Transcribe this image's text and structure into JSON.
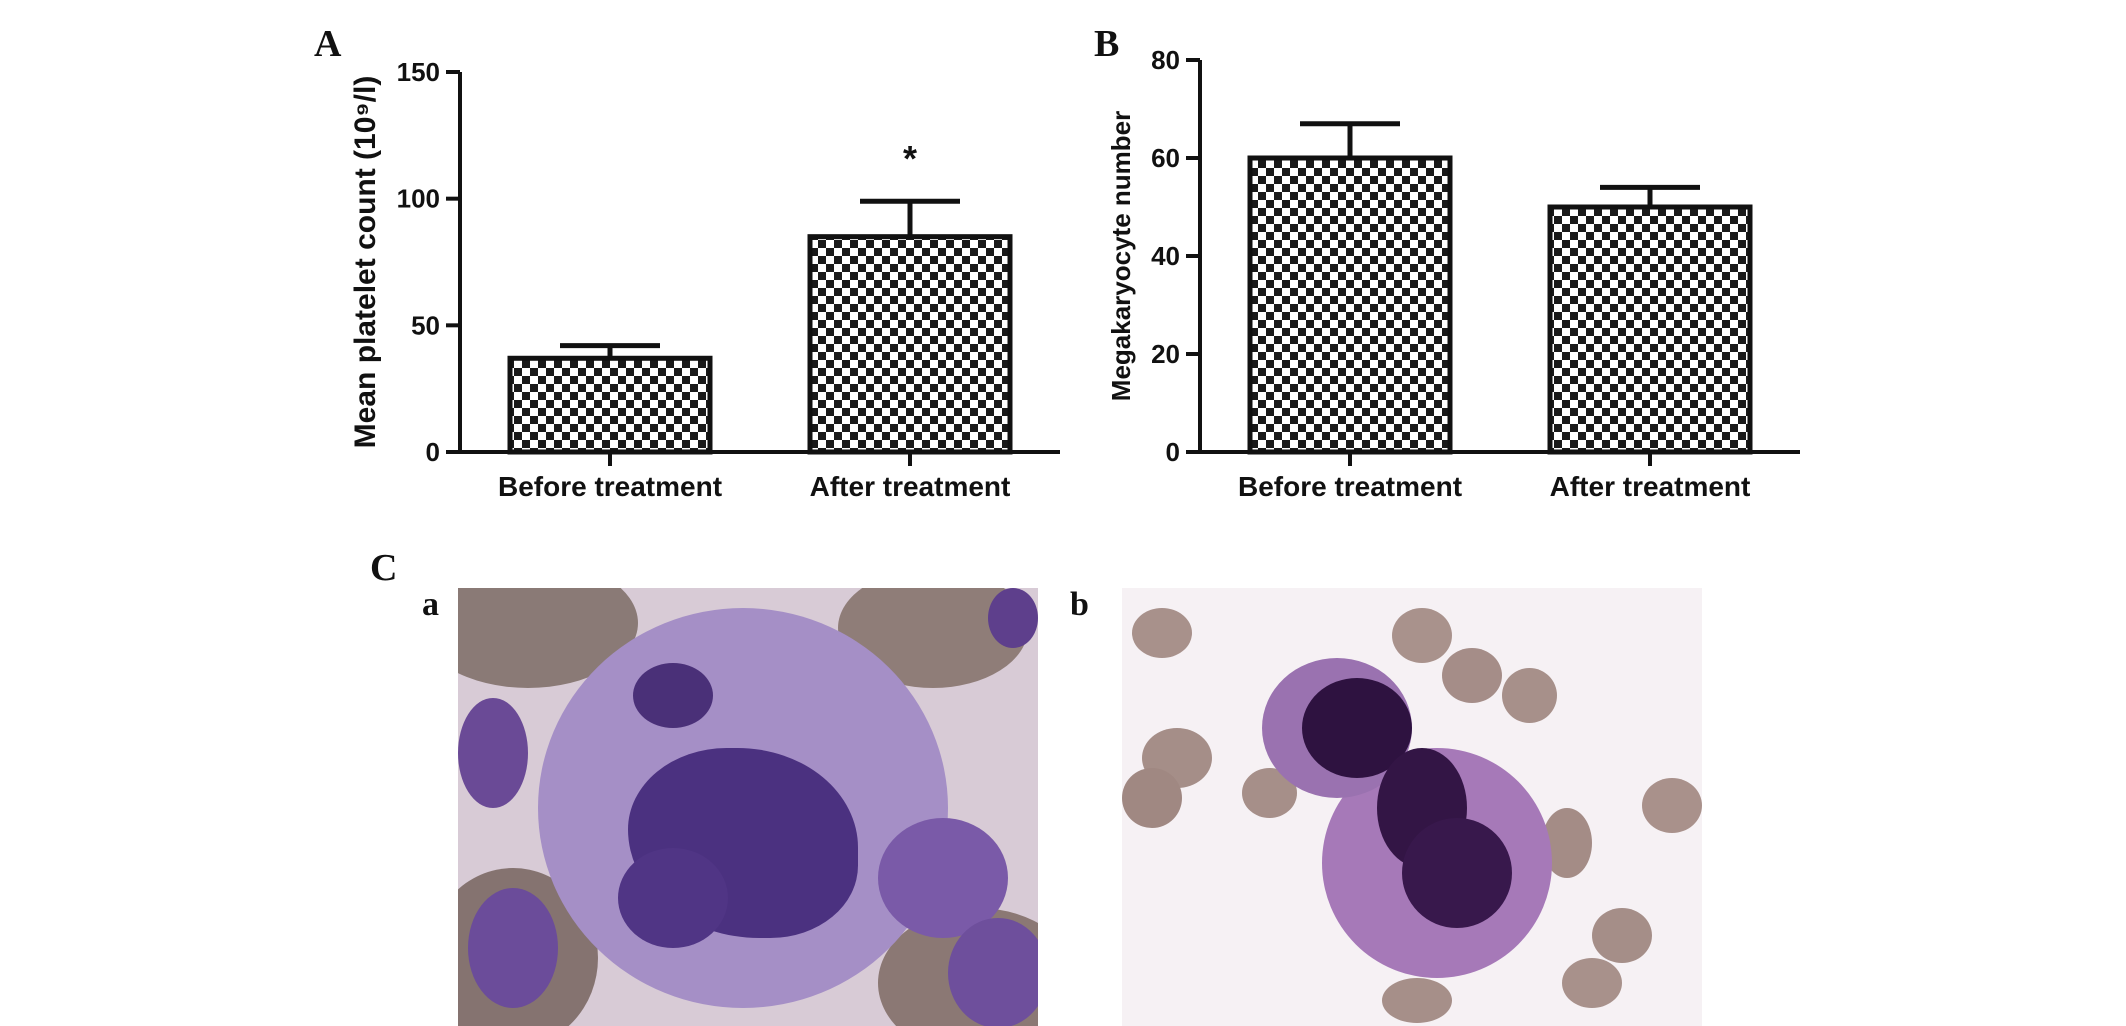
{
  "panels": {
    "a": "A",
    "b": "B",
    "c": "C",
    "sub_a": "a",
    "sub_b": "b"
  },
  "colors": {
    "bar_fill": "#ffffff",
    "bar_pattern": "#1a1a1a",
    "axis": "#111111",
    "micro_a_bg": "#e8dde6",
    "micro_b_bg": "#f7f2f5",
    "cytoplasm": "#b39ccf",
    "nucleus": "#4a2f78",
    "rbc": "#a89088"
  },
  "chart_data": [
    {
      "type": "bar",
      "categories": [
        "Before treatment",
        "After treatment"
      ],
      "values": [
        37,
        85
      ],
      "errors": [
        5,
        14
      ],
      "annotations": [
        "",
        "*"
      ],
      "ylabel": "Mean platelet count  (10⁹/l)",
      "ylim": [
        0,
        150
      ],
      "yticks": [
        0,
        50,
        100,
        150
      ],
      "grid": false
    },
    {
      "type": "bar",
      "categories": [
        "Before treatment",
        "After treatment"
      ],
      "values": [
        60,
        50
      ],
      "errors": [
        7,
        4
      ],
      "annotations": [
        "",
        ""
      ],
      "ylabel": "Megakaryocyte number",
      "ylim": [
        0,
        80
      ],
      "yticks": [
        0,
        20,
        40,
        60,
        80
      ],
      "grid": false
    }
  ]
}
